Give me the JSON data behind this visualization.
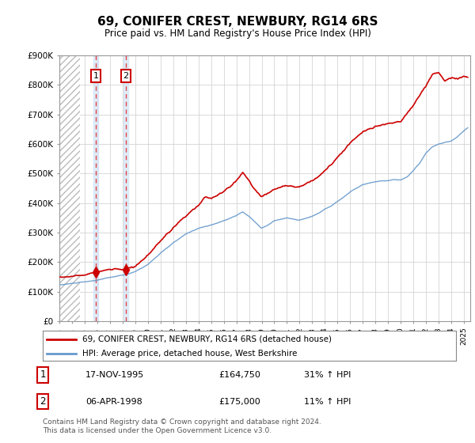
{
  "title": "69, CONIFER CREST, NEWBURY, RG14 6RS",
  "subtitle": "Price paid vs. HM Land Registry's House Price Index (HPI)",
  "legend_line1": "69, CONIFER CREST, NEWBURY, RG14 6RS (detached house)",
  "legend_line2": "HPI: Average price, detached house, West Berkshire",
  "annotation1": {
    "num": "1",
    "date": "17-NOV-1995",
    "price": "£164,750",
    "pct": "31% ↑ HPI"
  },
  "annotation2": {
    "num": "2",
    "date": "06-APR-1998",
    "price": "£175,000",
    "pct": "11% ↑ HPI"
  },
  "footer": "Contains HM Land Registry data © Crown copyright and database right 2024.\nThis data is licensed under the Open Government Licence v3.0.",
  "price_color": "#cc0000",
  "hpi_color": "#6699cc",
  "sale1_date": 1995.88,
  "sale1_price": 164750,
  "sale2_date": 1998.27,
  "sale2_price": 175000,
  "ylim": [
    0,
    900000
  ],
  "yticks": [
    0,
    100000,
    200000,
    300000,
    400000,
    500000,
    600000,
    700000,
    800000,
    900000
  ],
  "xlim_start": 1993.0,
  "xlim_end": 2025.5,
  "background_color": "#ffffff"
}
